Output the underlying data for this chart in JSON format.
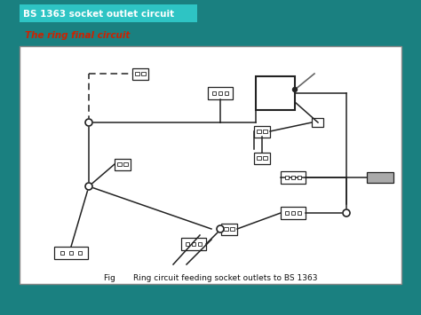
{
  "bg_color": "#1a8080",
  "panel_bg": "#ffffff",
  "title_box_color": "#2ec4c4",
  "title_text": "BS 1363 socket outlet circuit",
  "subtitle_text": "The ring final circuit",
  "subtitle_color": "#cc2200",
  "caption_text": "Fig       Ring circuit feeding socket outlets to BS 1363",
  "line_color": "#222222",
  "figsize": [
    4.74,
    3.55
  ],
  "dpi": 100
}
